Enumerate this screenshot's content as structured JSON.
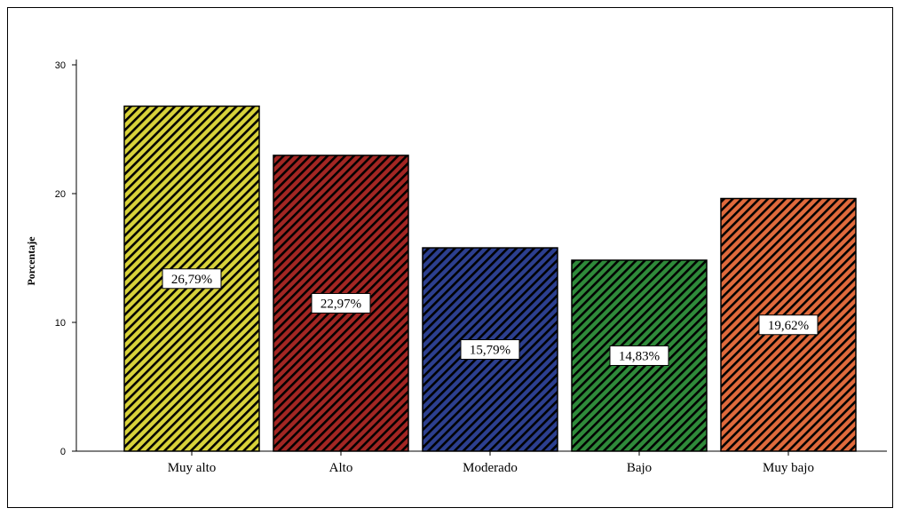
{
  "chart_data": {
    "type": "bar",
    "title": "",
    "xlabel": "",
    "ylabel": "Porcentaje",
    "ylim": [
      0,
      30
    ],
    "yticks": [
      0,
      10,
      20,
      30
    ],
    "categories": [
      "Muy alto",
      "Alto",
      "Moderado",
      "Bajo",
      "Muy bajo"
    ],
    "values": [
      26.79,
      22.97,
      15.79,
      14.83,
      19.62
    ],
    "data_labels": [
      "26,79%",
      "22,97%",
      "15,79%",
      "14,83%",
      "19,62%"
    ],
    "bar_colors": [
      "#d8d23a",
      "#a32623",
      "#2c3f8f",
      "#2f8a3a",
      "#e06a3c"
    ],
    "pattern": "diagonal-hatch",
    "grid": false,
    "legend": "none"
  }
}
